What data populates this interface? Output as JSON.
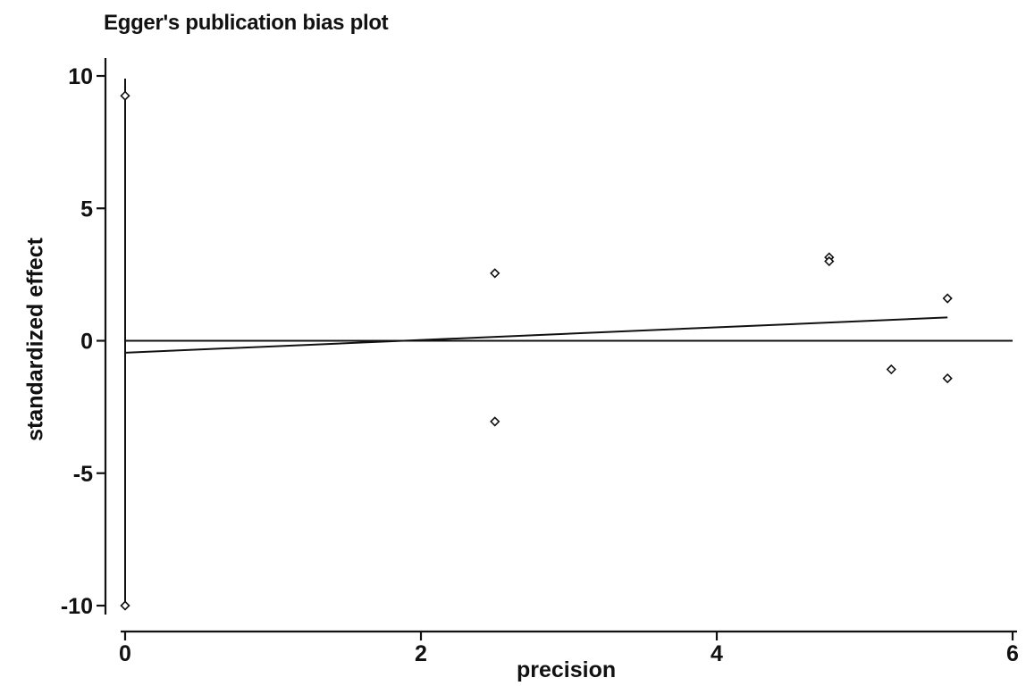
{
  "chart_data": {
    "type": "scatter",
    "title": "Egger's publication bias plot",
    "xlabel": "precision",
    "ylabel": "standardized effect",
    "xlim": [
      0,
      6
    ],
    "ylim": [
      -10,
      10
    ],
    "x_ticks": [
      0,
      2,
      4,
      6
    ],
    "y_ticks": [
      10,
      5,
      0,
      -5,
      -10
    ],
    "grid": false,
    "points": [
      {
        "x": 0,
        "y": 9.25
      },
      {
        "x": 0,
        "y": -10.0
      },
      {
        "x": 2.5,
        "y": 2.55
      },
      {
        "x": 2.5,
        "y": -3.05
      },
      {
        "x": 4.76,
        "y": 3.15
      },
      {
        "x": 4.76,
        "y": 3.0
      },
      {
        "x": 5.18,
        "y": -1.08
      },
      {
        "x": 5.56,
        "y": 1.6
      },
      {
        "x": 5.56,
        "y": -1.42
      }
    ],
    "intercept_ci": {
      "x": 0,
      "low": -10.0,
      "high": 9.9
    },
    "regression_line": {
      "x": [
        0,
        5.56
      ],
      "y": [
        -0.45,
        0.88
      ]
    },
    "reference_line": {
      "y": 0,
      "x": [
        0,
        6
      ]
    }
  }
}
